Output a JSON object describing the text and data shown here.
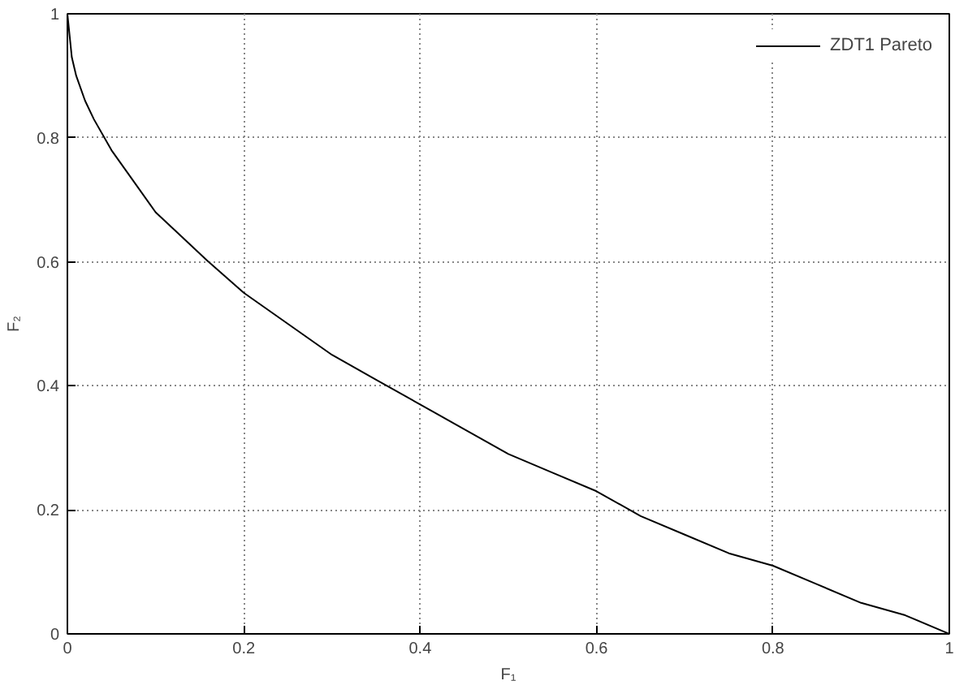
{
  "chart_data": {
    "type": "line",
    "xlabel": "F₁",
    "ylabel": "F₂",
    "x": [
      0,
      0.005,
      0.01,
      0.02,
      0.03,
      0.05,
      0.07,
      0.1,
      0.13,
      0.16,
      0.2,
      0.25,
      0.3,
      0.35,
      0.4,
      0.45,
      0.5,
      0.55,
      0.6,
      0.65,
      0.7,
      0.75,
      0.8,
      0.85,
      0.9,
      0.95,
      1
    ],
    "series": [
      {
        "name": "ZDT1 Pareto",
        "color": "#000000",
        "values": [
          1,
          0.93,
          0.9,
          0.86,
          0.83,
          0.78,
          0.74,
          0.68,
          0.64,
          0.6,
          0.55,
          0.5,
          0.45,
          0.41,
          0.37,
          0.33,
          0.29,
          0.26,
          0.23,
          0.19,
          0.16,
          0.13,
          0.11,
          0.08,
          0.05,
          0.03,
          0
        ]
      }
    ],
    "xlim": [
      0,
      1
    ],
    "ylim": [
      0,
      1
    ],
    "xticks": [
      0,
      0.2,
      0.4,
      0.6,
      0.8,
      1
    ],
    "yticks": [
      0,
      0.2,
      0.4,
      0.6,
      0.8,
      1
    ],
    "grid": true,
    "legend": "top right",
    "marker": "none",
    "line_style": "solid"
  }
}
